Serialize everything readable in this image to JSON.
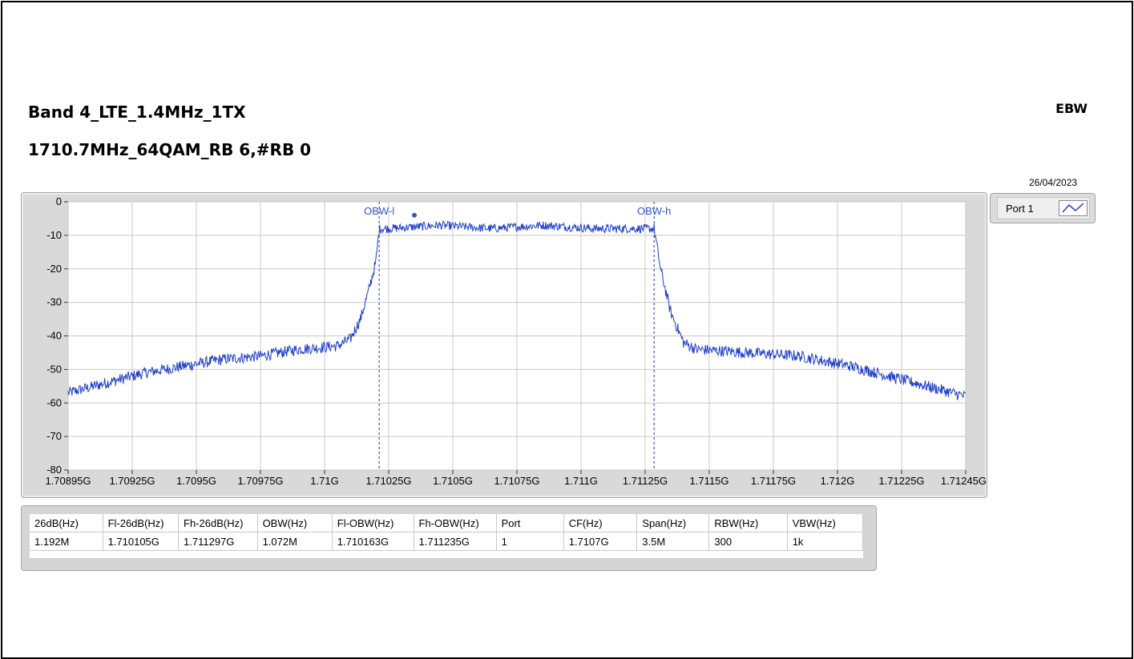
{
  "header": {
    "title_line1": "Band 4_LTE_1.4MHz_1TX",
    "title_line2": "1710.7MHz_64QAM_RB 6,#RB 0",
    "tag": "EBW",
    "date": "26/04/2023"
  },
  "legend": {
    "label": "Port 1",
    "icon": "line-plot-icon"
  },
  "colors": {
    "trace": "#1f3fc8",
    "marker": "#3355cc",
    "grid": "#c8c8c8",
    "panel": "#d9d9d9"
  },
  "chart_data": {
    "type": "line",
    "title": "",
    "xlabel": "",
    "ylabel": "",
    "xlim": [
      1708950000,
      1712450000
    ],
    "ylim": [
      -80,
      0
    ],
    "grid": true,
    "x_tick_labels": [
      "1.70895G",
      "1.70925G",
      "1.7095G",
      "1.70975G",
      "1.71G",
      "1.71025G",
      "1.7105G",
      "1.71075G",
      "1.711G",
      "1.71125G",
      "1.7115G",
      "1.71175G",
      "1.712G",
      "1.71225G",
      "1.71245G"
    ],
    "y_ticks": [
      0,
      -10,
      -20,
      -30,
      -40,
      -50,
      -60,
      -70,
      -80
    ],
    "series": [
      {
        "name": "Port 1",
        "x": [
          1708950000,
          1709100000,
          1709250000,
          1709400000,
          1709550000,
          1709700000,
          1709850000,
          1710000000,
          1710050000,
          1710090000,
          1710120000,
          1710150000,
          1710163000,
          1710200000,
          1710400000,
          1710600000,
          1710800000,
          1711000000,
          1711200000,
          1711235000,
          1711260000,
          1711300000,
          1711350000,
          1711400000,
          1711600000,
          1711800000,
          1712000000,
          1712150000,
          1712300000,
          1712450000
        ],
        "y": [
          -57,
          -54,
          -51,
          -49,
          -47,
          -46,
          -44,
          -43,
          -41,
          -35,
          -27,
          -18,
          -8,
          -8,
          -7,
          -8,
          -7,
          -8,
          -8,
          -8,
          -20,
          -33,
          -42,
          -44,
          -45,
          -46,
          -49,
          -52,
          -55,
          -58
        ]
      }
    ],
    "markers": [
      {
        "label": "OBW-l",
        "x": 1710163000
      },
      {
        "label": "OBW-h",
        "x": 1711235000
      }
    ],
    "peak_point": {
      "x": 1710300000,
      "y": -4
    }
  },
  "results_table": {
    "headers": [
      "26dB(Hz)",
      "Fl-26dB(Hz)",
      "Fh-26dB(Hz)",
      "OBW(Hz)",
      "Fl-OBW(Hz)",
      "Fh-OBW(Hz)",
      "Port",
      "CF(Hz)",
      "Span(Hz)",
      "RBW(Hz)",
      "VBW(Hz)"
    ],
    "rows": [
      [
        "1.192M",
        "1.710105G",
        "1.711297G",
        "1.072M",
        "1.710163G",
        "1.711235G",
        "1",
        "1.7107G",
        "3.5M",
        "300",
        "1k"
      ]
    ]
  }
}
